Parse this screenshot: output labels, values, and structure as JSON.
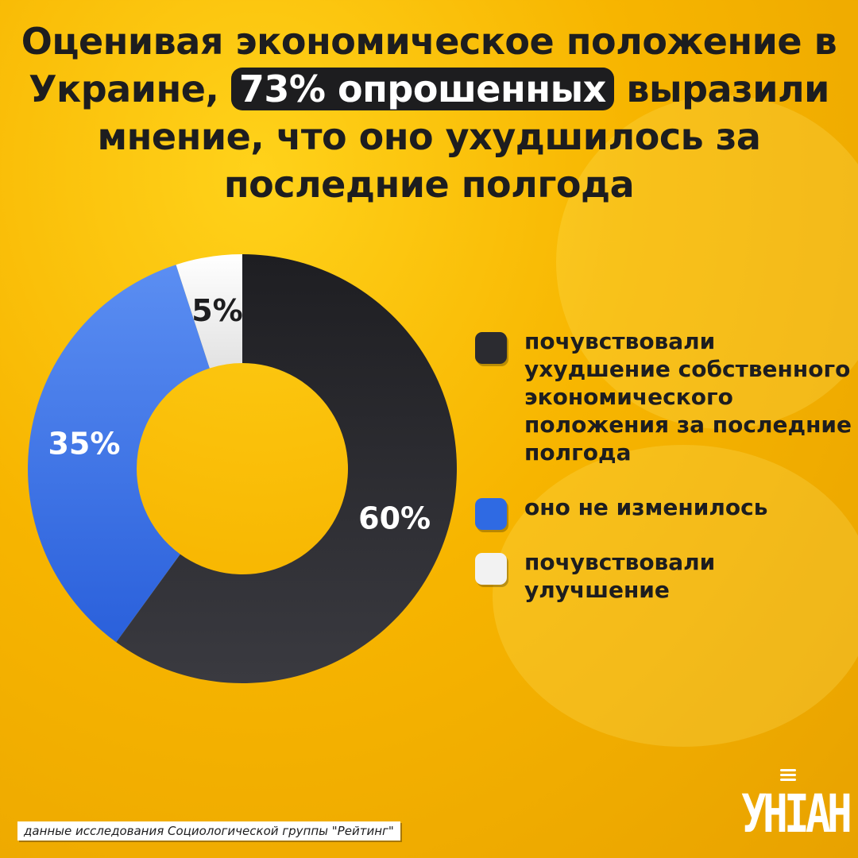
{
  "title": {
    "before": "Оценивая экономическое положение в Украине, ",
    "highlight": "73% опрошенных",
    "after": " выразили мнение, что оно ухудшилось за последние полгода"
  },
  "chart_data": {
    "type": "pie",
    "donut": true,
    "categories": [
      "почувствовали ухудшение собственного экономического положения за последние полгода",
      "оно не изменилось",
      "почувствовали улучшение"
    ],
    "values": [
      60,
      35,
      5
    ],
    "labels": [
      "60%",
      "35%",
      "5%"
    ],
    "colors": [
      "#2b2b30",
      "#3e7bf0",
      "#eeeeee"
    ],
    "label_colors": [
      "#ffffff",
      "#ffffff",
      "#1d1d1f"
    ],
    "legend_position": "right"
  },
  "source": "данные исследования Социологической группы \"Рейтинг\"",
  "logo": "УНІАН"
}
